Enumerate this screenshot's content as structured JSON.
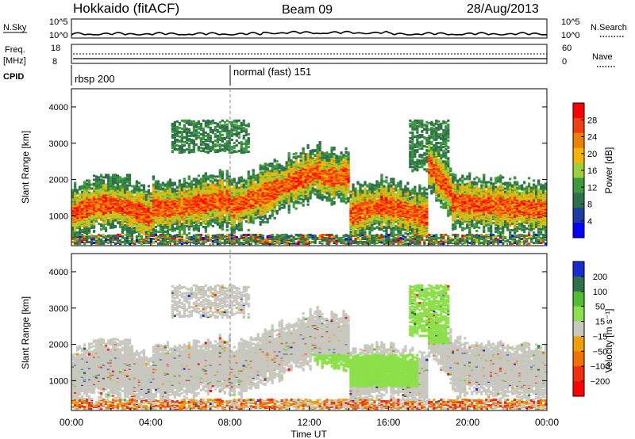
{
  "header": {
    "station": "Hokkaido (fitACF)",
    "beam": "Beam 09",
    "date": "28/Aug/2013"
  },
  "colors": {
    "power_scale": [
      "#0000ff",
      "#1e3ca0",
      "#2f6f4a",
      "#3c9a3c",
      "#9ccf3a",
      "#f5b400",
      "#f08000",
      "#f04010",
      "#ff0000"
    ],
    "velocity_scale": [
      "#1a2ad0",
      "#2f6f4a",
      "#4fbf2f",
      "#8ce04a",
      "#c8c8c0",
      "#f0a000",
      "#f07000",
      "#f03010",
      "#ff0000"
    ],
    "ground_scatter": "#c8c8c0"
  },
  "chart_data": [
    {
      "type": "line",
      "id": "nsky-panel",
      "labels": {
        "left": "N.Sky",
        "right": "N.Search"
      },
      "left_ticks": [
        "10^5",
        "10^0"
      ],
      "right_ticks": [
        "10^5",
        "10^0"
      ],
      "series": [],
      "x_range": [
        0,
        24
      ]
    },
    {
      "type": "line",
      "id": "freq-panel",
      "labels": {
        "left_top": "Freq.",
        "left_bottom": "[MHz]",
        "right": "Nave"
      },
      "left_ticks": [
        "18",
        "8"
      ],
      "right_ticks": [
        "60",
        "0"
      ],
      "series": [],
      "x_range": [
        0,
        24
      ]
    },
    {
      "type": "table",
      "id": "cpid-panel",
      "label": "CPID",
      "segments": [
        {
          "start_hour": 0,
          "text": "rbsp 200"
        },
        {
          "start_hour": 8,
          "text": "normal (fast) 151"
        }
      ]
    },
    {
      "type": "heatmap",
      "id": "power-panel",
      "ylabel": "Slant Range [km]",
      "x_range": [
        0,
        24
      ],
      "ylim": [
        180,
        4500
      ],
      "y_ticks": [
        1000,
        2000,
        3000,
        4000
      ],
      "colorbar": {
        "label": "Power [dB]",
        "range": [
          0,
          32
        ],
        "ticks": [
          4,
          8,
          12,
          16,
          20,
          24,
          28
        ]
      }
    },
    {
      "type": "heatmap",
      "id": "velocity-panel",
      "ylabel": "Slant Range [km]",
      "xlabel": "Time UT",
      "x_range": [
        0,
        24
      ],
      "ylim": [
        180,
        4500
      ],
      "y_ticks": [
        1000,
        2000,
        3000,
        4000
      ],
      "x_ticks": [
        "00:00",
        "04:00",
        "08:00",
        "12:00",
        "16:00",
        "20:00",
        "00:00"
      ],
      "colorbar": {
        "label": "Velocity [m s⁻¹]",
        "ticks": [
          "200",
          "100",
          "50",
          "15",
          "−15",
          "−50",
          "−100",
          "−200"
        ]
      }
    }
  ]
}
